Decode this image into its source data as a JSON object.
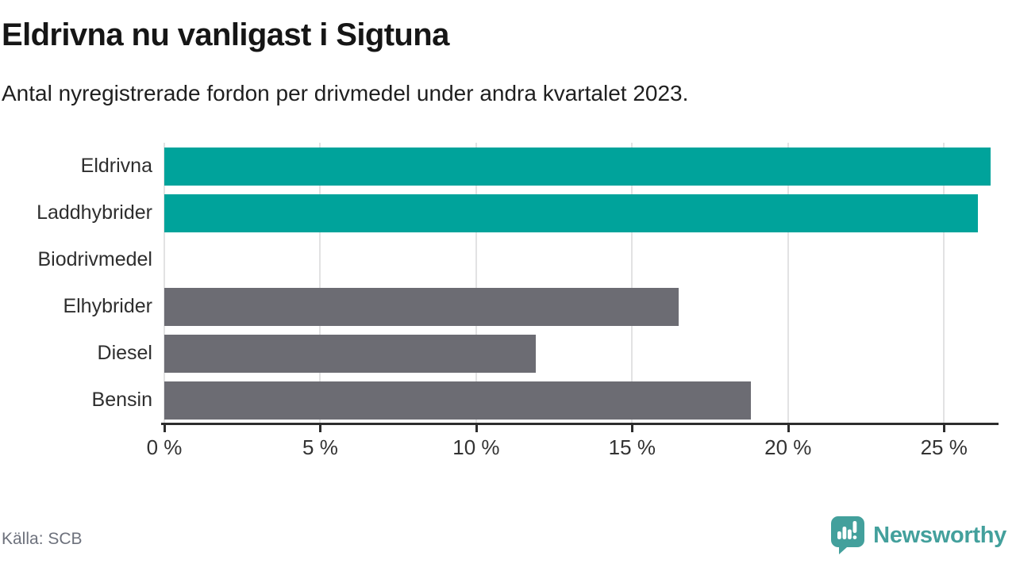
{
  "header": {
    "title": "Eldrivna nu vanligast i Sigtuna",
    "subtitle": "Antal nyregistrerade fordon per drivmedel under andra kvartalet 2023."
  },
  "chart_data": {
    "type": "bar",
    "orientation": "horizontal",
    "title": "Eldrivna nu vanligast i Sigtuna",
    "subtitle": "Antal nyregistrerade fordon per drivmedel under andra kvartalet 2023.",
    "categories": [
      "Eldrivna",
      "Laddhybrider",
      "Biodrivmedel",
      "Elhybrider",
      "Diesel",
      "Bensin"
    ],
    "values": [
      26.5,
      26.1,
      0,
      16.5,
      11.9,
      18.8
    ],
    "unit": "%",
    "bar_colors": [
      "#00a39b",
      "#00a39b",
      "#6c6c73",
      "#6c6c73",
      "#6c6c73",
      "#6c6c73"
    ],
    "xlabel": "",
    "ylabel": "",
    "xlim": [
      0,
      26.7
    ],
    "xticks": [
      0,
      5,
      10,
      15,
      20,
      25
    ],
    "xtick_suffix": " %",
    "grid": true,
    "legend": "none",
    "colors": {
      "highlight": "#00a39b",
      "neutral": "#6c6c73",
      "gridline": "#e2e2e3",
      "axis": "#2d2d2d",
      "tick_label": "#333333"
    }
  },
  "footer": {
    "source": "Källa: SCB",
    "brand": "Newsworthy",
    "brand_color": "#43a09c",
    "logo_icon": "bar-chart-speech-bubble-icon"
  }
}
